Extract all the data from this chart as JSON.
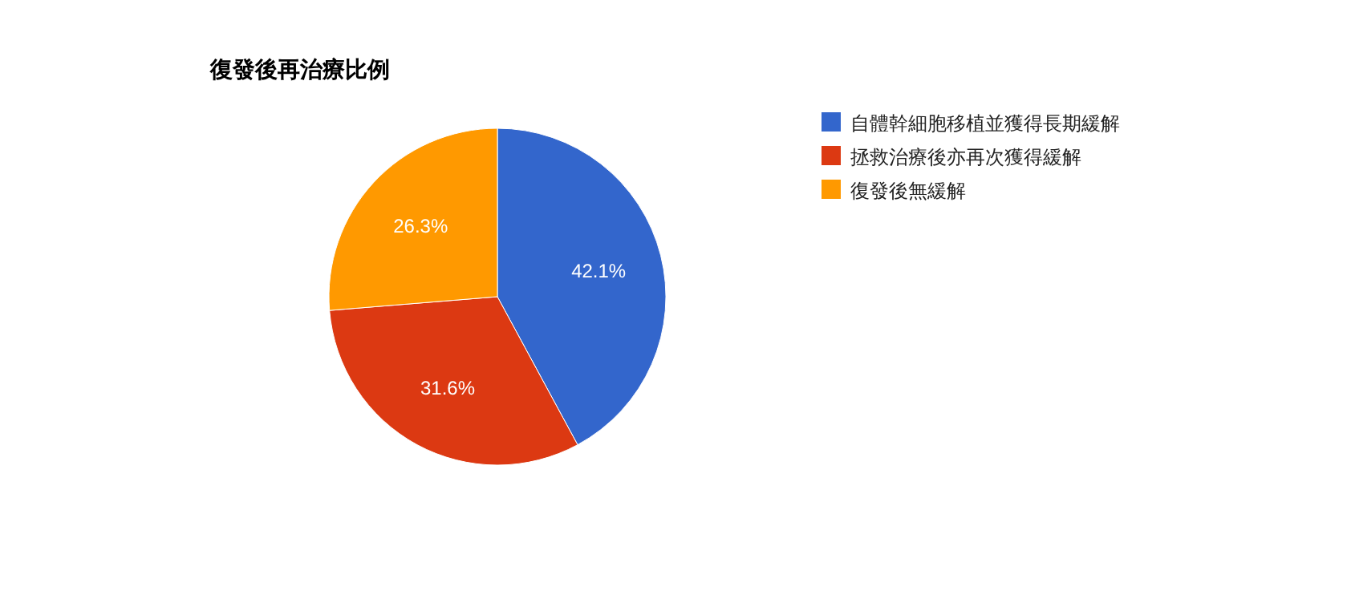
{
  "chart_data": {
    "type": "pie",
    "title": "復發後再治療比例",
    "categories": [
      "自體幹細胞移植並獲得長期緩解",
      "拯救治療後亦再次獲得緩解",
      "復發後無緩解"
    ],
    "values": [
      42.1,
      31.6,
      26.3
    ],
    "colors": [
      "#3366cc",
      "#dc3912",
      "#ff9900"
    ],
    "value_labels": [
      "42.1%",
      "31.6%",
      "26.3%"
    ],
    "legend": "right"
  }
}
